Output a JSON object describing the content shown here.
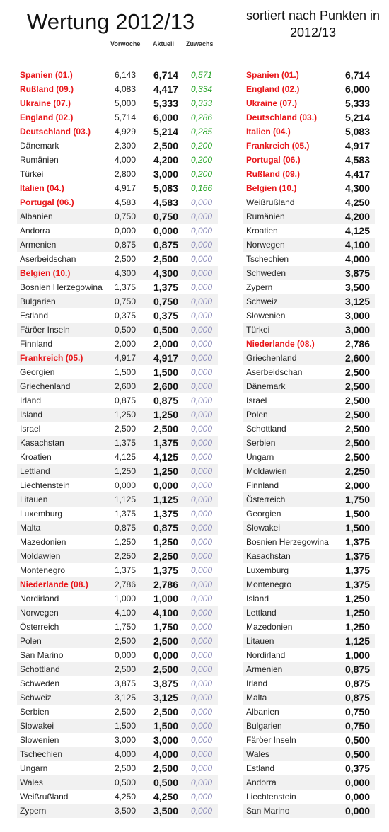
{
  "title": "Wertung 2012/13",
  "subtitle": "sortiert nach Punkten in 2012/13",
  "headers": {
    "prev": "Vorwoche",
    "current": "Aktuell",
    "gain": "Zuwachs"
  },
  "left_rows": [
    {
      "name": "Spanien (01.)",
      "prev": "6,143",
      "cur": "6,714",
      "gain": "0,571",
      "hl": true
    },
    {
      "name": "Rußland (09.)",
      "prev": "4,083",
      "cur": "4,417",
      "gain": "0,334",
      "hl": true
    },
    {
      "name": "Ukraine (07.)",
      "prev": "5,000",
      "cur": "5,333",
      "gain": "0,333",
      "hl": true
    },
    {
      "name": "England (02.)",
      "prev": "5,714",
      "cur": "6,000",
      "gain": "0,286",
      "hl": true
    },
    {
      "name": "Deutschland (03.)",
      "prev": "4,929",
      "cur": "5,214",
      "gain": "0,285",
      "hl": true
    },
    {
      "name": "Dänemark",
      "prev": "2,300",
      "cur": "2,500",
      "gain": "0,200",
      "hl": false
    },
    {
      "name": "Rumänien",
      "prev": "4,000",
      "cur": "4,200",
      "gain": "0,200",
      "hl": false
    },
    {
      "name": "Türkei",
      "prev": "2,800",
      "cur": "3,000",
      "gain": "0,200",
      "hl": false
    },
    {
      "name": "Italien (04.)",
      "prev": "4,917",
      "cur": "5,083",
      "gain": "0,166",
      "hl": true
    },
    {
      "name": "Portugal (06.)",
      "prev": "4,583",
      "cur": "4,583",
      "gain": "0,000",
      "hl": true
    },
    {
      "name": "Albanien",
      "prev": "0,750",
      "cur": "0,750",
      "gain": "0,000",
      "hl": false
    },
    {
      "name": "Andorra",
      "prev": "0,000",
      "cur": "0,000",
      "gain": "0,000",
      "hl": false
    },
    {
      "name": "Armenien",
      "prev": "0,875",
      "cur": "0,875",
      "gain": "0,000",
      "hl": false
    },
    {
      "name": "Aserbeidschan",
      "prev": "2,500",
      "cur": "2,500",
      "gain": "0,000",
      "hl": false
    },
    {
      "name": "Belgien (10.)",
      "prev": "4,300",
      "cur": "4,300",
      "gain": "0,000",
      "hl": true
    },
    {
      "name": "Bosnien Herzegowina",
      "prev": "1,375",
      "cur": "1,375",
      "gain": "0,000",
      "hl": false
    },
    {
      "name": "Bulgarien",
      "prev": "0,750",
      "cur": "0,750",
      "gain": "0,000",
      "hl": false
    },
    {
      "name": "Estland",
      "prev": "0,375",
      "cur": "0,375",
      "gain": "0,000",
      "hl": false
    },
    {
      "name": "Färöer Inseln",
      "prev": "0,500",
      "cur": "0,500",
      "gain": "0,000",
      "hl": false
    },
    {
      "name": "Finnland",
      "prev": "2,000",
      "cur": "2,000",
      "gain": "0,000",
      "hl": false
    },
    {
      "name": "Frankreich (05.)",
      "prev": "4,917",
      "cur": "4,917",
      "gain": "0,000",
      "hl": true
    },
    {
      "name": "Georgien",
      "prev": "1,500",
      "cur": "1,500",
      "gain": "0,000",
      "hl": false
    },
    {
      "name": "Griechenland",
      "prev": "2,600",
      "cur": "2,600",
      "gain": "0,000",
      "hl": false
    },
    {
      "name": "Irland",
      "prev": "0,875",
      "cur": "0,875",
      "gain": "0,000",
      "hl": false
    },
    {
      "name": "Island",
      "prev": "1,250",
      "cur": "1,250",
      "gain": "0,000",
      "hl": false
    },
    {
      "name": "Israel",
      "prev": "2,500",
      "cur": "2,500",
      "gain": "0,000",
      "hl": false
    },
    {
      "name": "Kasachstan",
      "prev": "1,375",
      "cur": "1,375",
      "gain": "0,000",
      "hl": false
    },
    {
      "name": "Kroatien",
      "prev": "4,125",
      "cur": "4,125",
      "gain": "0,000",
      "hl": false
    },
    {
      "name": "Lettland",
      "prev": "1,250",
      "cur": "1,250",
      "gain": "0,000",
      "hl": false
    },
    {
      "name": "Liechtenstein",
      "prev": "0,000",
      "cur": "0,000",
      "gain": "0,000",
      "hl": false
    },
    {
      "name": "Litauen",
      "prev": "1,125",
      "cur": "1,125",
      "gain": "0,000",
      "hl": false
    },
    {
      "name": "Luxemburg",
      "prev": "1,375",
      "cur": "1,375",
      "gain": "0,000",
      "hl": false
    },
    {
      "name": "Malta",
      "prev": "0,875",
      "cur": "0,875",
      "gain": "0,000",
      "hl": false
    },
    {
      "name": "Mazedonien",
      "prev": "1,250",
      "cur": "1,250",
      "gain": "0,000",
      "hl": false
    },
    {
      "name": "Moldawien",
      "prev": "2,250",
      "cur": "2,250",
      "gain": "0,000",
      "hl": false
    },
    {
      "name": "Montenegro",
      "prev": "1,375",
      "cur": "1,375",
      "gain": "0,000",
      "hl": false
    },
    {
      "name": "Niederlande (08.)",
      "prev": "2,786",
      "cur": "2,786",
      "gain": "0,000",
      "hl": true
    },
    {
      "name": "Nordirland",
      "prev": "1,000",
      "cur": "1,000",
      "gain": "0,000",
      "hl": false
    },
    {
      "name": "Norwegen",
      "prev": "4,100",
      "cur": "4,100",
      "gain": "0,000",
      "hl": false
    },
    {
      "name": "Österreich",
      "prev": "1,750",
      "cur": "1,750",
      "gain": "0,000",
      "hl": false
    },
    {
      "name": "Polen",
      "prev": "2,500",
      "cur": "2,500",
      "gain": "0,000",
      "hl": false
    },
    {
      "name": "San Marino",
      "prev": "0,000",
      "cur": "0,000",
      "gain": "0,000",
      "hl": false
    },
    {
      "name": "Schottland",
      "prev": "2,500",
      "cur": "2,500",
      "gain": "0,000",
      "hl": false
    },
    {
      "name": "Schweden",
      "prev": "3,875",
      "cur": "3,875",
      "gain": "0,000",
      "hl": false
    },
    {
      "name": "Schweiz",
      "prev": "3,125",
      "cur": "3,125",
      "gain": "0,000",
      "hl": false
    },
    {
      "name": "Serbien",
      "prev": "2,500",
      "cur": "2,500",
      "gain": "0,000",
      "hl": false
    },
    {
      "name": "Slowakei",
      "prev": "1,500",
      "cur": "1,500",
      "gain": "0,000",
      "hl": false
    },
    {
      "name": "Slowenien",
      "prev": "3,000",
      "cur": "3,000",
      "gain": "0,000",
      "hl": false
    },
    {
      "name": "Tschechien",
      "prev": "4,000",
      "cur": "4,000",
      "gain": "0,000",
      "hl": false
    },
    {
      "name": "Ungarn",
      "prev": "2,500",
      "cur": "2,500",
      "gain": "0,000",
      "hl": false
    },
    {
      "name": "Wales",
      "prev": "0,500",
      "cur": "0,500",
      "gain": "0,000",
      "hl": false
    },
    {
      "name": "Weißrußland",
      "prev": "4,250",
      "cur": "4,250",
      "gain": "0,000",
      "hl": false
    },
    {
      "name": "Zypern",
      "prev": "3,500",
      "cur": "3,500",
      "gain": "0,000",
      "hl": false
    }
  ],
  "right_rows": [
    {
      "name": "Spanien (01.)",
      "cur": "6,714",
      "hl": true
    },
    {
      "name": "England (02.)",
      "cur": "6,000",
      "hl": true
    },
    {
      "name": "Ukraine (07.)",
      "cur": "5,333",
      "hl": true
    },
    {
      "name": "Deutschland (03.)",
      "cur": "5,214",
      "hl": true
    },
    {
      "name": "Italien (04.)",
      "cur": "5,083",
      "hl": true
    },
    {
      "name": "Frankreich (05.)",
      "cur": "4,917",
      "hl": true
    },
    {
      "name": "Portugal (06.)",
      "cur": "4,583",
      "hl": true
    },
    {
      "name": "Rußland (09.)",
      "cur": "4,417",
      "hl": true
    },
    {
      "name": "Belgien (10.)",
      "cur": "4,300",
      "hl": true
    },
    {
      "name": "Weißrußland",
      "cur": "4,250",
      "hl": false
    },
    {
      "name": "Rumänien",
      "cur": "4,200",
      "hl": false
    },
    {
      "name": "Kroatien",
      "cur": "4,125",
      "hl": false
    },
    {
      "name": "Norwegen",
      "cur": "4,100",
      "hl": false
    },
    {
      "name": "Tschechien",
      "cur": "4,000",
      "hl": false
    },
    {
      "name": "Schweden",
      "cur": "3,875",
      "hl": false
    },
    {
      "name": "Zypern",
      "cur": "3,500",
      "hl": false
    },
    {
      "name": "Schweiz",
      "cur": "3,125",
      "hl": false
    },
    {
      "name": "Slowenien",
      "cur": "3,000",
      "hl": false
    },
    {
      "name": "Türkei",
      "cur": "3,000",
      "hl": false
    },
    {
      "name": "Niederlande (08.)",
      "cur": "2,786",
      "hl": true
    },
    {
      "name": "Griechenland",
      "cur": "2,600",
      "hl": false
    },
    {
      "name": "Aserbeidschan",
      "cur": "2,500",
      "hl": false
    },
    {
      "name": "Dänemark",
      "cur": "2,500",
      "hl": false
    },
    {
      "name": "Israel",
      "cur": "2,500",
      "hl": false
    },
    {
      "name": "Polen",
      "cur": "2,500",
      "hl": false
    },
    {
      "name": "Schottland",
      "cur": "2,500",
      "hl": false
    },
    {
      "name": "Serbien",
      "cur": "2,500",
      "hl": false
    },
    {
      "name": "Ungarn",
      "cur": "2,500",
      "hl": false
    },
    {
      "name": "Moldawien",
      "cur": "2,250",
      "hl": false
    },
    {
      "name": "Finnland",
      "cur": "2,000",
      "hl": false
    },
    {
      "name": "Österreich",
      "cur": "1,750",
      "hl": false
    },
    {
      "name": "Georgien",
      "cur": "1,500",
      "hl": false
    },
    {
      "name": "Slowakei",
      "cur": "1,500",
      "hl": false
    },
    {
      "name": "Bosnien Herzegowina",
      "cur": "1,375",
      "hl": false
    },
    {
      "name": "Kasachstan",
      "cur": "1,375",
      "hl": false
    },
    {
      "name": "Luxemburg",
      "cur": "1,375",
      "hl": false
    },
    {
      "name": "Montenegro",
      "cur": "1,375",
      "hl": false
    },
    {
      "name": "Island",
      "cur": "1,250",
      "hl": false
    },
    {
      "name": "Lettland",
      "cur": "1,250",
      "hl": false
    },
    {
      "name": "Mazedonien",
      "cur": "1,250",
      "hl": false
    },
    {
      "name": "Litauen",
      "cur": "1,125",
      "hl": false
    },
    {
      "name": "Nordirland",
      "cur": "1,000",
      "hl": false
    },
    {
      "name": "Armenien",
      "cur": "0,875",
      "hl": false
    },
    {
      "name": "Irland",
      "cur": "0,875",
      "hl": false
    },
    {
      "name": "Malta",
      "cur": "0,875",
      "hl": false
    },
    {
      "name": "Albanien",
      "cur": "0,750",
      "hl": false
    },
    {
      "name": "Bulgarien",
      "cur": "0,750",
      "hl": false
    },
    {
      "name": "Färöer Inseln",
      "cur": "0,500",
      "hl": false
    },
    {
      "name": "Wales",
      "cur": "0,500",
      "hl": false
    },
    {
      "name": "Estland",
      "cur": "0,375",
      "hl": false
    },
    {
      "name": "Andorra",
      "cur": "0,000",
      "hl": false
    },
    {
      "name": "Liechtenstein",
      "cur": "0,000",
      "hl": false
    },
    {
      "name": "San Marino",
      "cur": "0,000",
      "hl": false
    }
  ]
}
